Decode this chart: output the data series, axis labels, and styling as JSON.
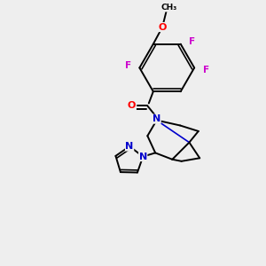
{
  "background_color": "#eeeeee",
  "bond_color": "#000000",
  "atom_colors": {
    "F": "#cc00cc",
    "O": "#ff0000",
    "N": "#0000cc",
    "C": "#000000"
  },
  "figsize": [
    3.0,
    3.0
  ],
  "dpi": 100
}
